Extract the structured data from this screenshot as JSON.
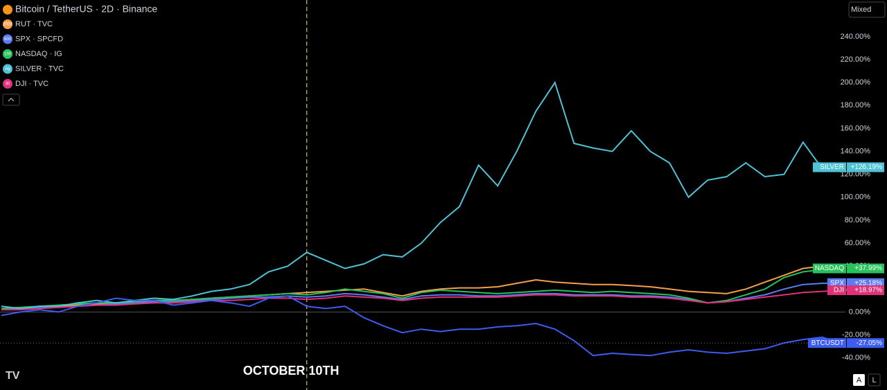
{
  "chart_data": {
    "type": "line",
    "title": "Bitcoin / TetherUS · 2D · Binance",
    "annotation": "OCTOBER 10TH",
    "buttons": [
      "Mixed",
      "A",
      "L"
    ],
    "ylim": [
      -68,
      272
    ],
    "yticks": [
      {
        "value": -40,
        "label": "-40.00%"
      },
      {
        "value": -20,
        "label": "-20.00%"
      },
      {
        "value": 0,
        "label": "0.00%"
      },
      {
        "value": 20,
        "label": "20.00%"
      },
      {
        "value": 40,
        "label": "40.00%"
      },
      {
        "value": 60,
        "label": "60.00%"
      },
      {
        "value": 80,
        "label": "80.00%"
      },
      {
        "value": 100,
        "label": "100.00%"
      },
      {
        "value": 120,
        "label": "120.00%"
      },
      {
        "value": 140,
        "label": "140.00%"
      },
      {
        "value": 160,
        "label": "160.00%"
      },
      {
        "value": 180,
        "label": "180.00%"
      },
      {
        "value": 200,
        "label": "200.00%"
      },
      {
        "value": 220,
        "label": "220.00%"
      },
      {
        "value": 240,
        "label": "240.00%"
      }
    ],
    "categories": [
      null,
      null,
      null,
      null,
      null,
      null,
      null,
      null,
      null,
      null,
      null,
      null,
      null,
      null,
      null,
      null,
      null,
      null,
      null,
      null,
      null,
      null,
      null,
      null,
      null,
      null,
      null,
      null,
      null,
      null,
      null,
      null,
      null,
      null,
      null,
      null,
      null,
      null,
      null,
      null,
      null,
      null,
      null,
      null,
      null
    ],
    "series": [
      {
        "name": "RUT · TVC",
        "icon": "2000",
        "color": "#f4a04a",
        "values": [
          2,
          3,
          4,
          5,
          6,
          7,
          8,
          9,
          10,
          10,
          11,
          12,
          13,
          14,
          15,
          16,
          17,
          18,
          19,
          20,
          17,
          14,
          18,
          20,
          21,
          21,
          22,
          25,
          28,
          26,
          25,
          24,
          24,
          23,
          22,
          20,
          18,
          17,
          16,
          20,
          26,
          32,
          38,
          40,
          38
        ]
      },
      {
        "name": "SPX · SPCFD",
        "icon": "500",
        "color": "#5b7cf5",
        "tag": "SPX",
        "last_label": "+25.18%",
        "values": [
          2,
          3,
          4,
          4,
          5,
          6,
          7,
          8,
          9,
          9,
          10,
          11,
          12,
          13,
          13,
          14,
          13,
          14,
          16,
          15,
          13,
          11,
          14,
          15,
          15,
          14,
          14,
          15,
          16,
          16,
          15,
          15,
          15,
          14,
          14,
          13,
          11,
          8,
          9,
          12,
          15,
          20,
          24,
          25,
          25.18
        ]
      },
      {
        "name": "NASDAQ · IG",
        "icon": "100",
        "color": "#27c25b",
        "tag": "NASDAQ",
        "last_label": "+37.99%",
        "values": [
          3,
          4,
          5,
          6,
          7,
          8,
          8,
          9,
          10,
          10,
          11,
          12,
          13,
          14,
          15,
          16,
          15,
          17,
          20,
          18,
          16,
          12,
          17,
          19,
          18,
          17,
          16,
          17,
          18,
          19,
          18,
          17,
          18,
          17,
          16,
          15,
          12,
          8,
          10,
          15,
          20,
          30,
          35,
          37,
          37.99
        ]
      },
      {
        "name": "SILVER · TVC",
        "icon": "Ag",
        "color": "#4fc3d6",
        "tag": "SILVER",
        "last_label": "+126.19%",
        "values": [
          5,
          3,
          5,
          5,
          8,
          10,
          8,
          10,
          12,
          11,
          14,
          18,
          20,
          24,
          35,
          40,
          52,
          45,
          38,
          42,
          50,
          48,
          60,
          78,
          92,
          128,
          110,
          140,
          175,
          200,
          147,
          143,
          140,
          158,
          140,
          130,
          100,
          115,
          118,
          130,
          118,
          120,
          148,
          125,
          126.19
        ]
      },
      {
        "name": "DJI · TVC",
        "icon": "30",
        "color": "#e0307a",
        "tag": "DJI",
        "last_label": "+18.97%",
        "values": [
          2,
          2,
          3,
          4,
          5,
          6,
          6,
          7,
          8,
          8,
          9,
          10,
          10,
          11,
          12,
          12,
          11,
          12,
          14,
          13,
          12,
          10,
          12,
          13,
          13,
          13,
          13,
          14,
          15,
          15,
          14,
          14,
          14,
          13,
          13,
          12,
          10,
          8,
          9,
          11,
          13,
          15,
          17,
          18,
          18.97
        ]
      },
      {
        "color": "#3d5cf0",
        "tag": "BTCUSDT",
        "last_label": "-27.05%",
        "values": [
          -3,
          0,
          2,
          0,
          5,
          8,
          12,
          10,
          10,
          6,
          8,
          10,
          8,
          5,
          12,
          14,
          5,
          3,
          5,
          -5,
          -12,
          -18,
          -15,
          -17,
          -15,
          -15,
          -13,
          -12,
          -10,
          -15,
          -25,
          -38,
          -36,
          -37,
          -38,
          -35,
          -33,
          -35,
          -36,
          -34,
          -32,
          -27,
          -24,
          -22,
          -27.05
        ]
      }
    ]
  }
}
